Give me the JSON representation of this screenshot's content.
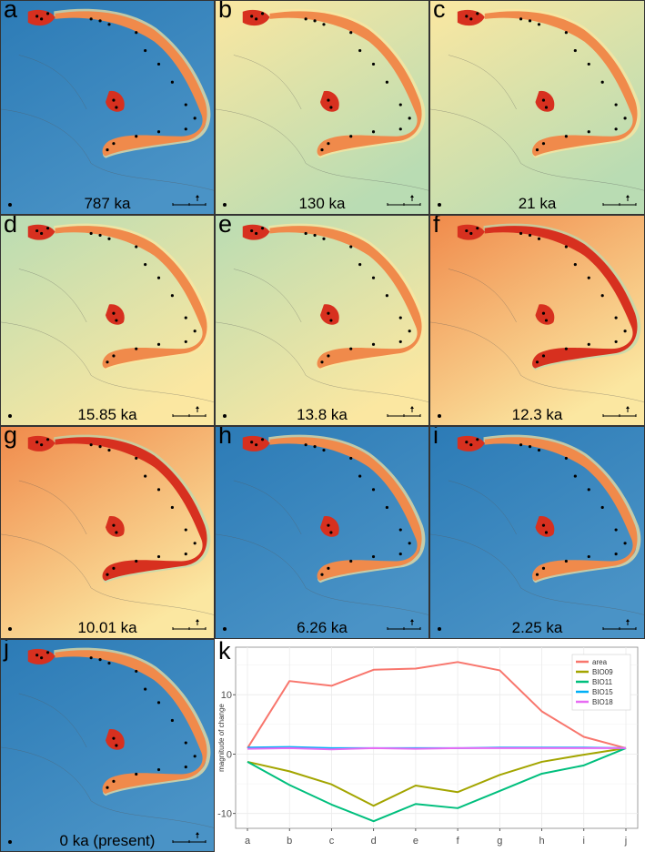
{
  "maps": [
    {
      "letter": "a",
      "age": "787 ka",
      "palette": "blue"
    },
    {
      "letter": "b",
      "age": "130 ka",
      "palette": "warm"
    },
    {
      "letter": "c",
      "age": "21 ka",
      "palette": "warm"
    },
    {
      "letter": "d",
      "age": "15.85 ka",
      "palette": "green"
    },
    {
      "letter": "e",
      "age": "13.8 ka",
      "palette": "green"
    },
    {
      "letter": "f",
      "age": "12.3 ka",
      "palette": "red"
    },
    {
      "letter": "g",
      "age": "10.01 ka",
      "palette": "red"
    },
    {
      "letter": "h",
      "age": "6.26 ka",
      "palette": "blue"
    },
    {
      "letter": "i",
      "age": "2.25 ka",
      "palette": "blue"
    },
    {
      "letter": "j",
      "age": "0 ka (present)",
      "palette": "blue"
    }
  ],
  "colors": {
    "deep_blue": "#2c7bb6",
    "mid_blue": "#4a93c6",
    "pale_green": "#b9dcb3",
    "pale_yellow": "#fbe7a1",
    "orange": "#f08a4b",
    "red": "#d7301f"
  },
  "chart_data": {
    "type": "line",
    "panel_letter": "k",
    "ylabel": "magnitude of change",
    "xlabel": "",
    "x": [
      "a",
      "b",
      "c",
      "d",
      "e",
      "f",
      "g",
      "h",
      "i",
      "j"
    ],
    "ylim": [
      -12.5,
      18
    ],
    "yticks": [
      -10,
      0,
      10
    ],
    "grid": true,
    "legend_position": "top-right",
    "series": [
      {
        "name": "area",
        "color": "#f8766d",
        "values": [
          1,
          12.3,
          11.5,
          14.2,
          14.4,
          15.5,
          14.1,
          7.2,
          2.9,
          1
        ]
      },
      {
        "name": "BIO09",
        "color": "#a3a500",
        "values": [
          -1.3,
          -2.9,
          -5.1,
          -8.7,
          -5.3,
          -6.4,
          -3.5,
          -1.3,
          -0.1,
          1
        ]
      },
      {
        "name": "BIO11",
        "color": "#00bf7d",
        "values": [
          -1.3,
          -5.2,
          -8.5,
          -11.3,
          -8.4,
          -9.1,
          -6.2,
          -3.3,
          -1.9,
          1
        ]
      },
      {
        "name": "BIO15",
        "color": "#00b0f6",
        "values": [
          1.1,
          1.2,
          1.0,
          1.0,
          1.0,
          1.0,
          1.1,
          1.1,
          1.1,
          1
        ]
      },
      {
        "name": "BIO18",
        "color": "#e76bf3",
        "values": [
          0.9,
          1.0,
          0.8,
          1.0,
          0.9,
          1.0,
          1.0,
          1.0,
          1.0,
          1
        ]
      }
    ]
  }
}
